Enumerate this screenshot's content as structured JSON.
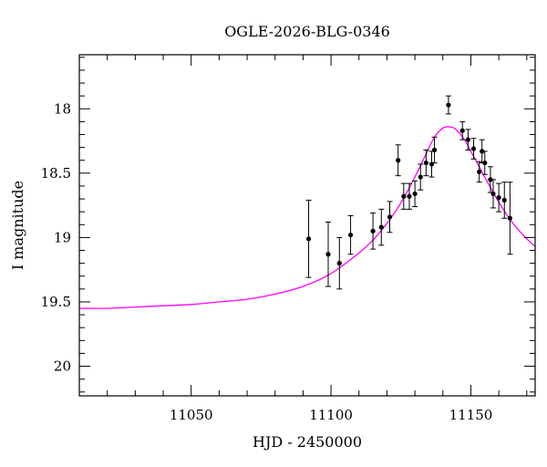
{
  "chart_data": {
    "type": "scatter",
    "title": "OGLE-2026-BLG-0346",
    "xlabel": "HJD - 2450000",
    "ylabel": "I magnitude",
    "xlim": [
      11010,
      11173
    ],
    "ylim": [
      20.23,
      17.58
    ],
    "y_inverted": true,
    "grid": false,
    "legend": "none",
    "x_ticks": [
      11050,
      11100,
      11150
    ],
    "x_tick_labels": [
      "11050",
      "11100",
      "11150"
    ],
    "y_ticks": [
      18,
      18.5,
      19,
      19.5,
      20
    ],
    "y_tick_labels": [
      "18",
      "18.5",
      "19",
      "19.5",
      "20"
    ],
    "colors": {
      "model": "#ff00ff",
      "points": "#000000",
      "frame": "#000000"
    },
    "points": [
      {
        "x": 11092.0,
        "y": 19.01,
        "err": 0.3
      },
      {
        "x": 11099.0,
        "y": 19.13,
        "err": 0.25
      },
      {
        "x": 11103.0,
        "y": 19.2,
        "err": 0.2
      },
      {
        "x": 11107.0,
        "y": 18.98,
        "err": 0.15
      },
      {
        "x": 11115.0,
        "y": 18.95,
        "err": 0.14
      },
      {
        "x": 11118.0,
        "y": 18.92,
        "err": 0.14
      },
      {
        "x": 11121.0,
        "y": 18.84,
        "err": 0.12
      },
      {
        "x": 11124.0,
        "y": 18.4,
        "err": 0.12
      },
      {
        "x": 11126.0,
        "y": 18.68,
        "err": 0.1
      },
      {
        "x": 11128.0,
        "y": 18.68,
        "err": 0.1
      },
      {
        "x": 11130.0,
        "y": 18.66,
        "err": 0.1
      },
      {
        "x": 11132.0,
        "y": 18.53,
        "err": 0.1
      },
      {
        "x": 11134.0,
        "y": 18.42,
        "err": 0.1
      },
      {
        "x": 11136.0,
        "y": 18.43,
        "err": 0.1
      },
      {
        "x": 11137.0,
        "y": 18.32,
        "err": 0.1
      },
      {
        "x": 11142.0,
        "y": 17.97,
        "err": 0.07
      },
      {
        "x": 11147.0,
        "y": 18.17,
        "err": 0.07
      },
      {
        "x": 11149.0,
        "y": 18.24,
        "err": 0.08
      },
      {
        "x": 11151.0,
        "y": 18.31,
        "err": 0.08
      },
      {
        "x": 11153.0,
        "y": 18.49,
        "err": 0.08
      },
      {
        "x": 11154.0,
        "y": 18.33,
        "err": 0.09
      },
      {
        "x": 11155.0,
        "y": 18.42,
        "err": 0.09
      },
      {
        "x": 11157.0,
        "y": 18.55,
        "err": 0.1
      },
      {
        "x": 11158.0,
        "y": 18.66,
        "err": 0.11
      },
      {
        "x": 11160.0,
        "y": 18.69,
        "err": 0.11
      },
      {
        "x": 11162.0,
        "y": 18.71,
        "err": 0.14
      },
      {
        "x": 11164.0,
        "y": 18.85,
        "err": 0.28
      }
    ],
    "model_curve": {
      "x": [
        11010,
        11020,
        11030,
        11040,
        11050,
        11060,
        11070,
        11080,
        11090,
        11100,
        11110,
        11115,
        11120,
        11125,
        11130,
        11134,
        11137,
        11140,
        11142,
        11144,
        11146,
        11148,
        11150,
        11152,
        11155,
        11158,
        11161,
        11164,
        11167,
        11170,
        11173
      ],
      "y": [
        19.55,
        19.55,
        19.54,
        19.53,
        19.52,
        19.5,
        19.48,
        19.44,
        19.38,
        19.28,
        19.12,
        19.02,
        18.89,
        18.73,
        18.53,
        18.35,
        18.22,
        18.15,
        18.14,
        18.15,
        18.19,
        18.25,
        18.33,
        18.41,
        18.53,
        18.65,
        18.76,
        18.86,
        18.94,
        19.01,
        19.07
      ]
    }
  }
}
